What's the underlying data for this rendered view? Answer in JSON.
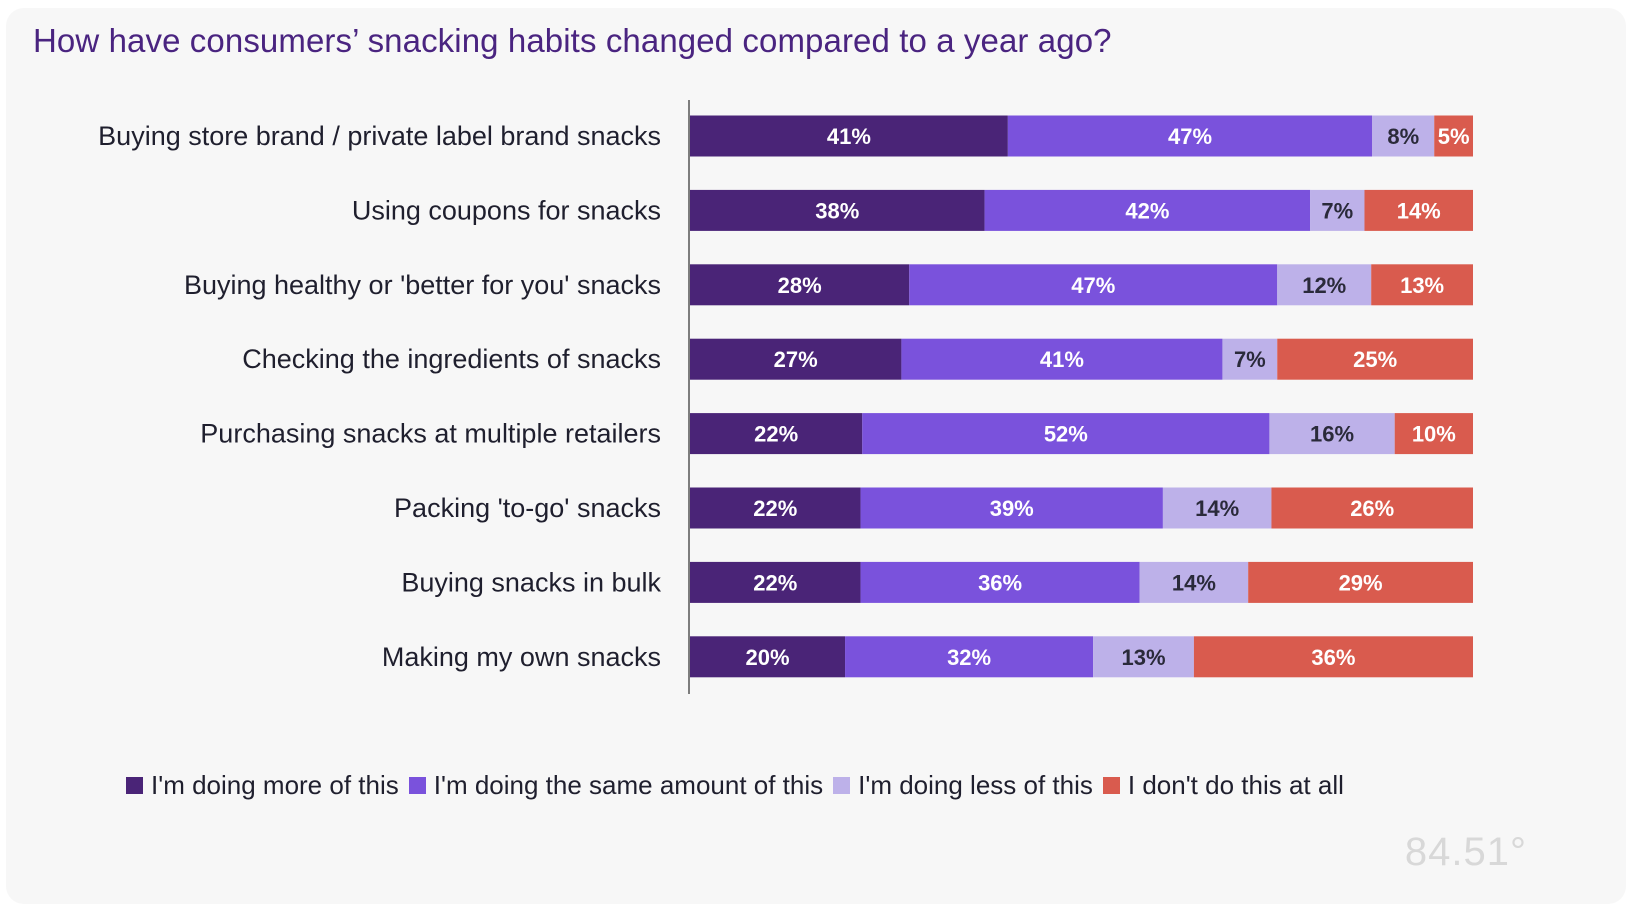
{
  "chart_data": {
    "type": "bar",
    "orientation": "horizontal",
    "stacked": true,
    "title": "How have consumers’ snacking habits changed compared to a year ago?",
    "categories": [
      "Buying store brand / private label brand snacks",
      "Using coupons for snacks",
      "Buying healthy or 'better for you' snacks",
      "Checking the ingredients of snacks",
      "Purchasing snacks at multiple retailers",
      "Packing 'to-go' snacks",
      "Buying snacks in bulk",
      "Making my own snacks"
    ],
    "series": [
      {
        "name": "I'm doing more of this",
        "color": "#4a2477",
        "text_color": "#ffffff",
        "values": [
          41,
          38,
          28,
          27,
          22,
          22,
          22,
          20
        ]
      },
      {
        "name": "I'm doing the same amount of this",
        "color": "#7a52dc",
        "text_color": "#ffffff",
        "values": [
          47,
          42,
          47,
          41,
          52,
          39,
          36,
          32
        ]
      },
      {
        "name": "I'm doing less of this",
        "color": "#bdb1e9",
        "text_color": "#2a2a3a",
        "values": [
          8,
          7,
          12,
          7,
          16,
          14,
          14,
          13
        ]
      },
      {
        "name": "I don't do this at all",
        "color": "#d95b4e",
        "text_color": "#ffffff",
        "values": [
          5,
          14,
          13,
          25,
          10,
          26,
          29,
          36
        ]
      }
    ],
    "value_suffix": "%",
    "legend_position": "bottom",
    "xlabel": "",
    "ylabel": ""
  },
  "logo_text": "84.51°"
}
